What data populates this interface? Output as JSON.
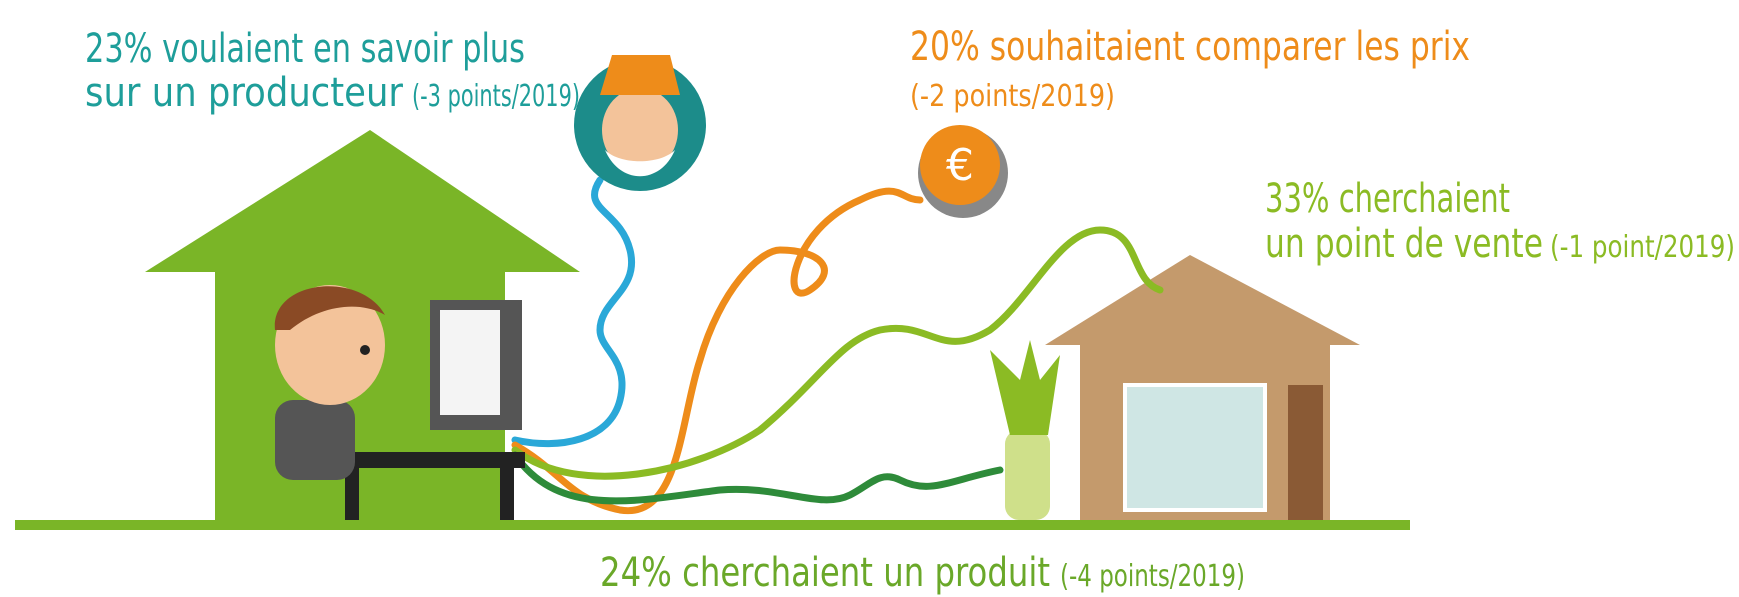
{
  "callouts": [
    {
      "lines": [
        "23% voulaient en savoir plus",
        "sur un producteur"
      ],
      "note": "(-3 points/2019)"
    },
    {
      "lines": [
        "20% souhaitaient comparer les prix"
      ],
      "note": "(-2 points/2019)"
    },
    {
      "lines": [
        "33% cherchaient",
        "un point de vente"
      ],
      "note": "(-1 point/2019)"
    },
    {
      "lines": [
        "24% cherchaient un produit"
      ],
      "note": "(-4 points/2019)"
    }
  ]
}
